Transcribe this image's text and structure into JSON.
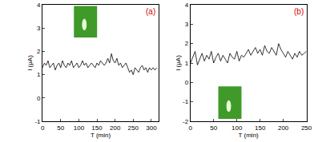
{
  "chart_data": [
    {
      "type": "line",
      "annotations": [
        "(a)"
      ],
      "x_label": "T (min)",
      "y_label": "I (μA)",
      "color": "#000000",
      "x": [
        0,
        5,
        10,
        15,
        20,
        25,
        30,
        35,
        40,
        45,
        50,
        55,
        60,
        65,
        70,
        75,
        80,
        85,
        90,
        95,
        100,
        105,
        110,
        115,
        120,
        125,
        130,
        135,
        140,
        145,
        150,
        155,
        160,
        165,
        170,
        175,
        180,
        185,
        190,
        195,
        200,
        205,
        210,
        215,
        220,
        225,
        230,
        235,
        240,
        245,
        250,
        255,
        260,
        265,
        270,
        275,
        280,
        285,
        290,
        295,
        300,
        305,
        310,
        315
      ],
      "values": [
        1.3,
        1.5,
        1.4,
        1.6,
        1.3,
        1.4,
        1.5,
        1.2,
        1.4,
        1.5,
        1.3,
        1.6,
        1.4,
        1.3,
        1.5,
        1.4,
        1.6,
        1.3,
        1.4,
        1.5,
        1.3,
        1.4,
        1.6,
        1.4,
        1.5,
        1.3,
        1.4,
        1.5,
        1.4,
        1.3,
        1.5,
        1.4,
        1.6,
        1.5,
        1.4,
        1.5,
        1.7,
        1.5,
        1.9,
        1.6,
        1.5,
        1.7,
        1.4,
        1.5,
        1.3,
        1.4,
        1.5,
        1.3,
        1.1,
        1.2,
        1.0,
        1.3,
        1.2,
        1.1,
        1.3,
        1.4,
        1.2,
        1.3,
        1.1,
        1.3,
        1.2,
        1.3,
        1.2,
        1.3
      ],
      "xlim": [
        0,
        320
      ],
      "xticks": [
        0,
        50,
        100,
        150,
        200,
        250,
        300
      ],
      "ylim": [
        -1,
        4
      ],
      "yticks": [
        -1,
        0,
        1,
        2,
        3,
        4
      ]
    },
    {
      "type": "line",
      "annotations": [
        "(b)"
      ],
      "x_label": "T (min)",
      "y_label": "I (μA)",
      "color": "#000000",
      "x": [
        0,
        5,
        10,
        15,
        20,
        25,
        30,
        35,
        40,
        45,
        50,
        55,
        60,
        65,
        70,
        75,
        80,
        85,
        90,
        95,
        100,
        105,
        110,
        115,
        120,
        125,
        130,
        135,
        140,
        145,
        150,
        155,
        160,
        165,
        170,
        175,
        180,
        185,
        190,
        195,
        200,
        205,
        210,
        215,
        220,
        225,
        230,
        235,
        240,
        245,
        250
      ],
      "values": [
        1.0,
        1.3,
        1.6,
        0.9,
        1.2,
        1.5,
        1.1,
        1.4,
        1.2,
        1.6,
        1.0,
        1.3,
        1.5,
        1.1,
        1.4,
        1.2,
        1.0,
        1.5,
        1.3,
        1.2,
        1.6,
        1.1,
        1.4,
        1.3,
        1.5,
        1.7,
        1.4,
        1.6,
        1.8,
        1.5,
        1.7,
        1.4,
        1.9,
        1.6,
        1.5,
        1.8,
        1.6,
        1.4,
        2.0,
        1.7,
        1.5,
        1.3,
        1.6,
        1.4,
        1.2,
        1.5,
        1.3,
        1.6,
        1.4,
        1.5,
        1.6
      ],
      "xlim": [
        0,
        250
      ],
      "xticks": [
        0,
        50,
        100,
        150,
        200,
        250
      ],
      "ylim": [
        -2,
        4
      ],
      "yticks": [
        -2,
        -1,
        0,
        1,
        2,
        3,
        4
      ]
    }
  ]
}
